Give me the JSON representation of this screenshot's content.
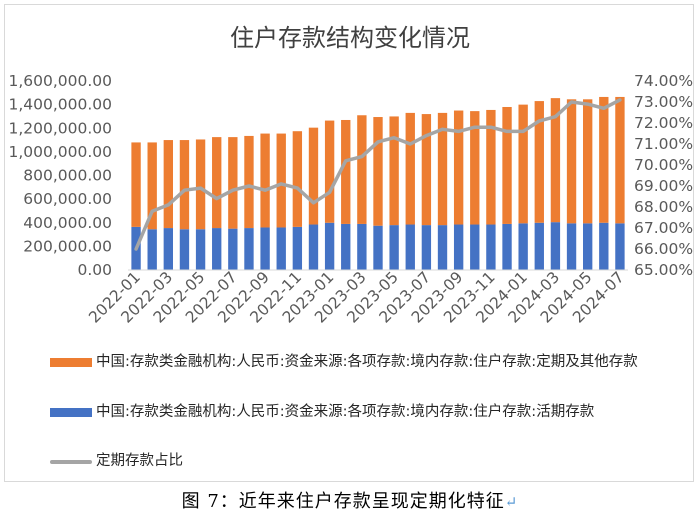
{
  "figure_caption": "图 7：近年来住户存款呈现定期化特征",
  "caption_mark": "↵",
  "colors": {
    "fixed": "#ed7d31",
    "current": "#4472c4",
    "ratio": "#a5a5a5"
  },
  "chart_data": {
    "type": "bar",
    "stacked": true,
    "title": "住户存款结构变化情况",
    "x": [
      "2022-01",
      "2022-02",
      "2022-03",
      "2022-04",
      "2022-05",
      "2022-06",
      "2022-07",
      "2022-08",
      "2022-09",
      "2022-10",
      "2022-11",
      "2022-12",
      "2023-01",
      "2023-02",
      "2023-03",
      "2023-04",
      "2023-05",
      "2023-06",
      "2023-07",
      "2023-08",
      "2023-09",
      "2023-10",
      "2023-11",
      "2023-12",
      "2024-01",
      "2024-02",
      "2024-03",
      "2024-04",
      "2024-05",
      "2024-06",
      "2024-07"
    ],
    "x_tick_labels": [
      "2022-01",
      "2022-03",
      "2022-05",
      "2022-07",
      "2022-09",
      "2022-11",
      "2023-01",
      "2023-03",
      "2023-05",
      "2023-07",
      "2023-09",
      "2023-11",
      "2024-01",
      "2024-03",
      "2024-05",
      "2024-07"
    ],
    "y_left": {
      "ylim": [
        0,
        1600000
      ],
      "ticks": [
        "0.00",
        "200,000.00",
        "400,000.00",
        "600,000.00",
        "800,000.00",
        "1,000,000.00",
        "1,200,000.00",
        "1,400,000.00",
        "1,600,000.00"
      ]
    },
    "y_right": {
      "ylim": [
        65,
        74
      ],
      "ticks": [
        "65.00%",
        "66.00%",
        "67.00%",
        "68.00%",
        "69.00%",
        "70.00%",
        "71.00%",
        "72.00%",
        "73.00%",
        "74.00%"
      ]
    },
    "grid": false,
    "legend_position": "bottom",
    "series": [
      {
        "name": "中国:存款类金融机构:人民币:资金来源:各项存款:境内存款:住户存款:活期存款",
        "type": "bar",
        "axis": "left",
        "values": [
          365000,
          345000,
          355000,
          345000,
          345000,
          355000,
          350000,
          355000,
          360000,
          360000,
          365000,
          385000,
          400000,
          390000,
          390000,
          375000,
          380000,
          385000,
          380000,
          380000,
          385000,
          385000,
          385000,
          390000,
          395000,
          400000,
          405000,
          395000,
          395000,
          400000,
          395000
        ]
      },
      {
        "name": "中国:存款类金融机构:人民币:资金来源:各项存款:境内存款:住户存款:定期及其他存款",
        "type": "bar",
        "axis": "left",
        "values": [
          715000,
          735000,
          745000,
          755000,
          760000,
          770000,
          775000,
          780000,
          795000,
          795000,
          810000,
          820000,
          865000,
          880000,
          920000,
          920000,
          920000,
          945000,
          940000,
          950000,
          965000,
          960000,
          970000,
          990000,
          1005000,
          1030000,
          1050000,
          1050000,
          1050000,
          1065000,
          1070000
        ]
      },
      {
        "name": "定期存款占比",
        "type": "line",
        "axis": "right",
        "values": [
          66.0,
          67.8,
          68.1,
          68.8,
          68.9,
          68.4,
          68.8,
          69.0,
          68.8,
          69.1,
          68.9,
          68.2,
          68.7,
          70.2,
          70.4,
          71.1,
          71.3,
          71.0,
          71.4,
          71.7,
          71.6,
          71.8,
          71.8,
          71.6,
          71.6,
          72.1,
          72.3,
          73.0,
          72.9,
          72.7,
          73.1
        ]
      }
    ]
  }
}
